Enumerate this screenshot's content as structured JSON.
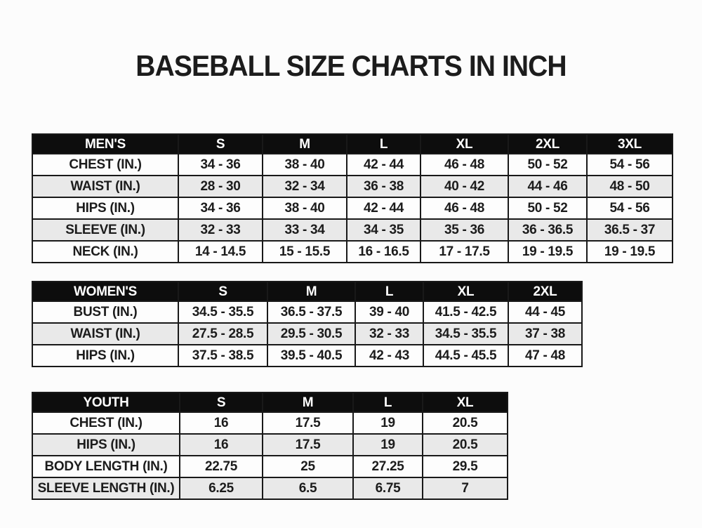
{
  "page": {
    "title": "BASEBALL SIZE CHARTS IN INCH"
  },
  "colors": {
    "page_bg": "#fcfcfc",
    "header_bg": "#0d0d0d",
    "header_text": "#ffffff",
    "row_bg": "#fdfdfd",
    "row_alt_bg": "#e9e9e9",
    "border": "#191919",
    "text": "#1c1c1c"
  },
  "tables": [
    {
      "name": "mens",
      "header": [
        "MEN'S",
        "S",
        "M",
        "L",
        "XL",
        "2XL",
        "3XL"
      ],
      "rows": [
        {
          "label": "CHEST (IN.)",
          "values": [
            "34 - 36",
            "38 - 40",
            "42 - 44",
            "46 - 48",
            "50 - 52",
            "54 - 56"
          ]
        },
        {
          "label": "WAIST (IN.)",
          "values": [
            "28 - 30",
            "32 - 34",
            "36 - 38",
            "40 - 42",
            "44 - 46",
            "48 - 50"
          ]
        },
        {
          "label": "HIPS (IN.)",
          "values": [
            "34 - 36",
            "38 - 40",
            "42 - 44",
            "46 - 48",
            "50 - 52",
            "54 - 56"
          ]
        },
        {
          "label": "SLEEVE (IN.)",
          "values": [
            "32 - 33",
            "33 - 34",
            "34 - 35",
            "35 - 36",
            "36 - 36.5",
            "36.5 - 37"
          ]
        },
        {
          "label": "NECK (IN.)",
          "values": [
            "14 - 14.5",
            "15 - 15.5",
            "16 - 16.5",
            "17 - 17.5",
            "19 - 19.5",
            "19 - 19.5"
          ]
        }
      ]
    },
    {
      "name": "womens",
      "header": [
        "WOMEN'S",
        "S",
        "M",
        "L",
        "XL",
        "2XL"
      ],
      "rows": [
        {
          "label": "BUST (IN.)",
          "values": [
            "34.5 - 35.5",
            "36.5 - 37.5",
            "39 - 40",
            "41.5 - 42.5",
            "44 - 45"
          ]
        },
        {
          "label": "WAIST (IN.)",
          "values": [
            "27.5 - 28.5",
            "29.5 - 30.5",
            "32 - 33",
            "34.5 - 35.5",
            "37 - 38"
          ]
        },
        {
          "label": "HIPS (IN.)",
          "values": [
            "37.5 - 38.5",
            "39.5 - 40.5",
            "42 - 43",
            "44.5 - 45.5",
            "47 - 48"
          ]
        }
      ]
    },
    {
      "name": "youth",
      "header": [
        "YOUTH",
        "S",
        "M",
        "L",
        "XL"
      ],
      "rows": [
        {
          "label": "CHEST (IN.)",
          "values": [
            "16",
            "17.5",
            "19",
            "20.5"
          ]
        },
        {
          "label": "HIPS (IN.)",
          "values": [
            "16",
            "17.5",
            "19",
            "20.5"
          ]
        },
        {
          "label": "BODY LENGTH (IN.)",
          "values": [
            "22.75",
            "25",
            "27.25",
            "29.5"
          ]
        },
        {
          "label": "SLEEVE LENGTH (IN.)",
          "values": [
            "6.25",
            "6.5",
            "6.75",
            "7"
          ]
        }
      ]
    }
  ]
}
